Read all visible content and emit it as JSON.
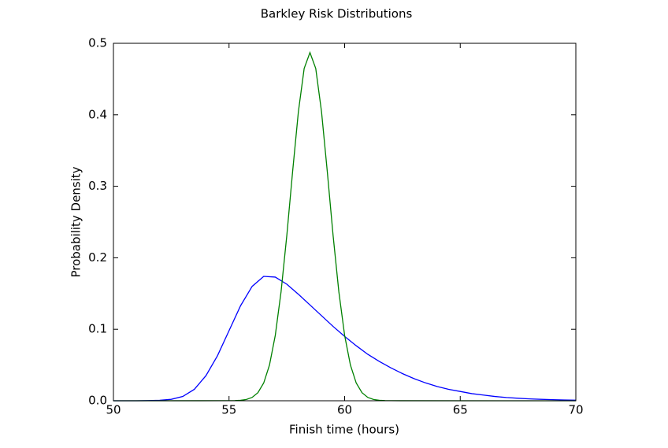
{
  "chart_data": {
    "type": "line",
    "title": "Barkley Risk Distributions",
    "x_label": "Finish time (hours)",
    "y_label": "Probability Density",
    "xlim": [
      50,
      70
    ],
    "xticks": [
      50,
      55,
      60,
      65,
      70
    ],
    "ylim": [
      0,
      0.5
    ],
    "yticks": [
      {
        "value": 0,
        "label": "0.0"
      },
      0.1,
      0.2,
      0.3,
      0.4,
      0.5
    ],
    "grid": false,
    "series": [
      {
        "color": "#0000ff",
        "x": [
          50,
          50.5,
          51,
          51.5,
          52,
          52.5,
          53,
          53.5,
          54,
          54.5,
          55,
          55.5,
          56,
          56.5,
          57,
          57.5,
          58,
          58.5,
          59,
          59.5,
          60,
          60.5,
          61,
          61.5,
          62,
          62.5,
          63,
          63.5,
          64,
          64.5,
          65,
          65.5,
          66,
          66.5,
          67,
          67.5,
          68,
          68.5,
          69,
          69.5,
          70
        ],
        "values": [
          0,
          0,
          0,
          0.0002,
          0.0006,
          0.002,
          0.006,
          0.016,
          0.035,
          0.063,
          0.098,
          0.133,
          0.16,
          0.174,
          0.173,
          0.163,
          0.149,
          0.134,
          0.119,
          0.104,
          0.09,
          0.077,
          0.065,
          0.055,
          0.046,
          0.038,
          0.031,
          0.025,
          0.02,
          0.016,
          0.013,
          0.01,
          0.008,
          0.006,
          0.0045,
          0.0035,
          0.0026,
          0.002,
          0.0015,
          0.0011,
          0.0008
        ]
      },
      {
        "color": "#008000",
        "x": [
          50,
          55,
          55.25,
          55.5,
          55.75,
          56,
          56.25,
          56.5,
          56.75,
          57,
          57.25,
          57.5,
          57.75,
          58,
          58.25,
          58.5,
          58.75,
          59,
          59.25,
          59.5,
          59.75,
          60,
          60.25,
          60.5,
          60.75,
          61,
          61.25,
          61.5,
          61.75,
          62,
          70
        ],
        "values": [
          0,
          0.0001,
          0.0002,
          0.0006,
          0.0018,
          0.0047,
          0.0113,
          0.0249,
          0.05,
          0.0914,
          0.1524,
          0.2315,
          0.3205,
          0.4044,
          0.4649,
          0.487,
          0.4649,
          0.4044,
          0.3205,
          0.2315,
          0.1524,
          0.0914,
          0.05,
          0.0249,
          0.0113,
          0.0047,
          0.0018,
          0.0006,
          0.0002,
          0.0001,
          0
        ]
      }
    ]
  }
}
